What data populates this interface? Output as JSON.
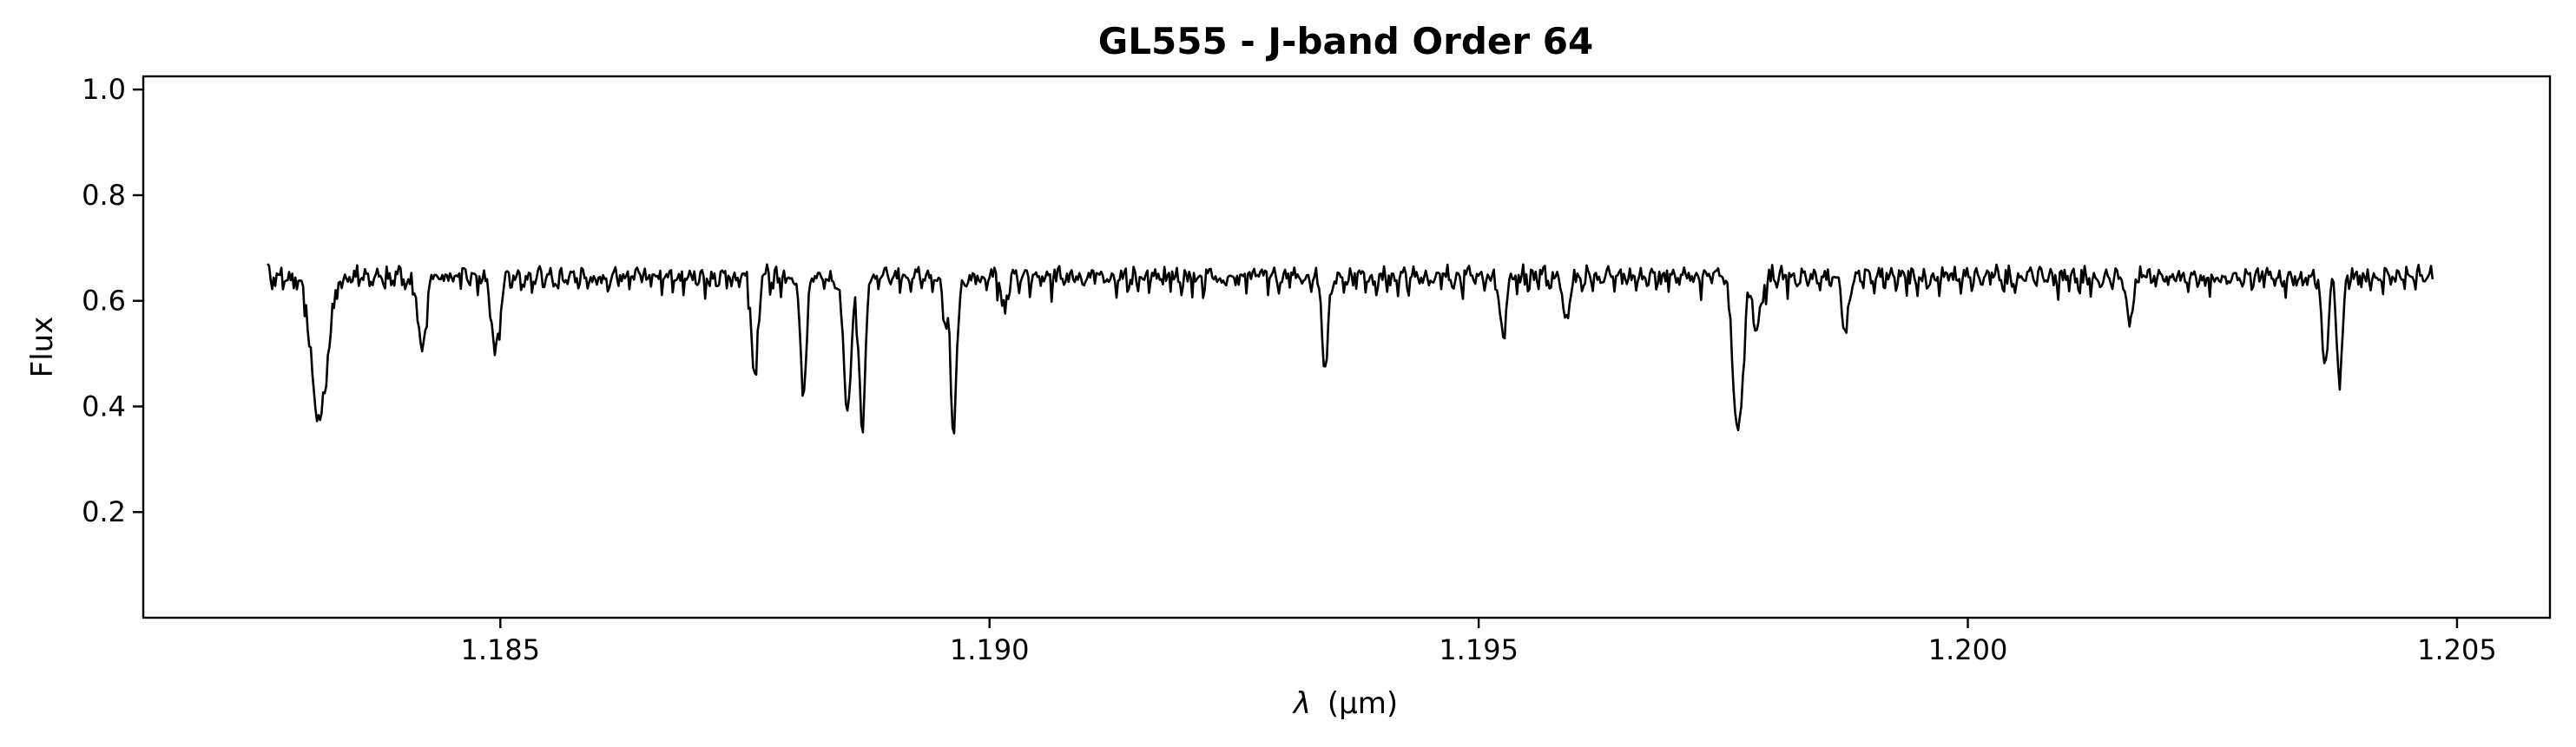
{
  "chart_data": {
    "type": "line",
    "title": "GL555 - J-band Order 64",
    "xlabel_symbol": "λ",
    "xlabel_unit": "(μm)",
    "ylabel": "Flux",
    "xlim": [
      1.18135,
      1.20595
    ],
    "ylim": [
      0.0,
      1.025
    ],
    "x_ticks": [
      1.185,
      1.19,
      1.195,
      1.2,
      1.205
    ],
    "x_tick_labels": [
      "1.185",
      "1.190",
      "1.195",
      "1.200",
      "1.205"
    ],
    "y_ticks": [
      0.2,
      0.4,
      0.6,
      0.8,
      1.0
    ],
    "y_tick_labels": [
      "0.2",
      "0.4",
      "0.6",
      "0.8",
      "1.0"
    ],
    "grid": false,
    "legend": false,
    "line_color": "#000000",
    "series": [
      {
        "baseline": 0.645,
        "noise_amplitude": 0.012,
        "x_start": 1.18262,
        "x_end": 1.20475,
        "absorption_lines": [
          {
            "x": 1.18315,
            "depth": 0.27,
            "width": 8e-05
          },
          {
            "x": 1.1842,
            "depth": 0.14,
            "width": 4e-05
          },
          {
            "x": 1.18495,
            "depth": 0.15,
            "width": 4e-05
          },
          {
            "x": 1.1876,
            "depth": 0.2,
            "width": 3e-05
          },
          {
            "x": 1.1881,
            "depth": 0.22,
            "width": 3e-05
          },
          {
            "x": 1.18855,
            "depth": 0.24,
            "width": 4e-05
          },
          {
            "x": 1.1887,
            "depth": 0.29,
            "width": 3e-05
          },
          {
            "x": 1.18955,
            "depth": 0.09,
            "width": 3e-05
          },
          {
            "x": 1.18965,
            "depth": 0.17,
            "width": 3e-05
          },
          {
            "x": 1.18962,
            "depth": 0.17,
            "width": 2e-05
          },
          {
            "x": 1.19015,
            "depth": 0.07,
            "width": 3e-05
          },
          {
            "x": 1.19343,
            "depth": 0.17,
            "width": 3e-05
          },
          {
            "x": 1.19525,
            "depth": 0.12,
            "width": 3e-05
          },
          {
            "x": 1.1959,
            "depth": 0.09,
            "width": 3e-05
          },
          {
            "x": 1.19765,
            "depth": 0.29,
            "width": 5e-05
          },
          {
            "x": 1.19785,
            "depth": 0.1,
            "width": 4e-05
          },
          {
            "x": 1.19875,
            "depth": 0.11,
            "width": 3e-05
          },
          {
            "x": 1.20165,
            "depth": 0.1,
            "width": 3e-05
          },
          {
            "x": 1.20365,
            "depth": 0.17,
            "width": 3e-05
          },
          {
            "x": 1.2038,
            "depth": 0.19,
            "width": 3e-05
          }
        ]
      }
    ]
  }
}
